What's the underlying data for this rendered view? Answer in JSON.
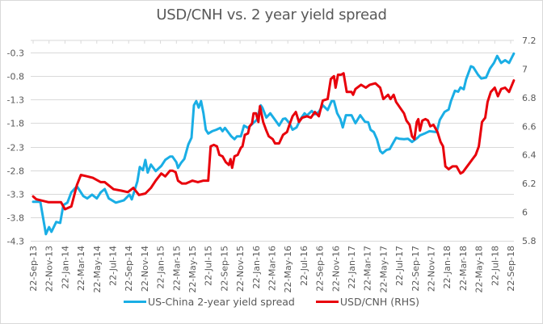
{
  "chart_data": {
    "type": "line",
    "title": "USD/CNH vs. 2 year yield spread",
    "xlabel": "",
    "ylabel": "",
    "x_unit": "months since 22-Sep-13",
    "x_tick_labels": [
      "22-Sep-13",
      "22-Nov-13",
      "22-Jan-14",
      "22-Mar-14",
      "22-May-14",
      "22-Jul-14",
      "22-Sep-14",
      "22-Nov-14",
      "22-Jan-15",
      "22-Mar-15",
      "22-May-15",
      "22-Jul-15",
      "22-Sep-15",
      "22-Nov-15",
      "22-Jan-16",
      "22-Mar-16",
      "22-May-16",
      "22-Jul-16",
      "22-Sep-16",
      "22-Nov-16",
      "22-Jan-17",
      "22-Mar-17",
      "22-May-17",
      "22-Jul-17",
      "22-Sep-17",
      "22-Nov-17",
      "22-Jan-18",
      "22-Mar-18",
      "22-May-18",
      "22-Jul-18",
      "22-Sep-18"
    ],
    "xlim": [
      0,
      60
    ],
    "y_left": {
      "ticks": [
        "-0.3",
        "-0.8",
        "-1.3",
        "-1.8",
        "-2.3",
        "-2.8",
        "-3.3",
        "-3.8",
        "-4.3"
      ],
      "ylim": [
        -4.3,
        -0.04
      ]
    },
    "y_right": {
      "ticks": [
        "7.2",
        "7",
        "6.8",
        "6.6",
        "6.4",
        "6.2",
        "6",
        "5.8"
      ],
      "ylim": [
        5.8,
        7.2
      ]
    },
    "grid": true,
    "legend_position": "bottom",
    "series": [
      {
        "name": "US-China 2-year yield spread",
        "axis": "left",
        "color": "#1aaee5",
        "x": [
          0,
          0.9,
          1.6,
          2.0,
          2.3,
          2.9,
          3.4,
          3.8,
          4.3,
          4.8,
          5.5,
          6.3,
          6.8,
          7.4,
          8.0,
          8.5,
          9.0,
          9.5,
          10.4,
          11.4,
          12.1,
          12.4,
          13.1,
          13.4,
          13.8,
          14.1,
          14.4,
          14.8,
          15.4,
          16.1,
          16.6,
          17.2,
          17.5,
          18.0,
          18.2,
          18.6,
          19.0,
          19.5,
          19.9,
          20.2,
          20.5,
          20.8,
          21.1,
          21.4,
          21.7,
          22.0,
          22.5,
          23.0,
          23.5,
          23.8,
          24.1,
          24.5,
          24.9,
          25.3,
          25.6,
          26.1,
          26.5,
          27.0,
          27.5,
          28.1,
          28.6,
          28.8,
          29.3,
          29.8,
          30.4,
          30.9,
          31.4,
          31.7,
          32.2,
          32.6,
          33.1,
          33.6,
          34.1,
          34.4,
          35.0,
          35.4,
          35.9,
          36.4,
          37.0,
          37.5,
          37.8,
          38.2,
          38.6,
          38.9,
          39.3,
          40.0,
          40.5,
          41.1,
          41.7,
          42.1,
          42.4,
          42.8,
          43.2,
          43.6,
          43.9,
          44.4,
          44.8,
          45.2,
          45.6,
          46.0,
          46.6,
          47.1,
          47.6,
          47.9,
          48.3,
          48.6,
          49.3,
          49.8,
          50.7,
          51.1,
          51.7,
          52.2,
          52.5,
          53.0,
          53.4,
          53.7,
          54.1,
          54.4,
          54.7,
          55.0,
          55.3,
          55.9,
          56.3,
          56.9,
          57.4,
          57.9,
          58.3,
          58.8,
          59.3,
          59.8,
          60.4
        ],
        "values": [
          -3.47,
          -3.47,
          -4.16,
          -4.01,
          -4.11,
          -3.9,
          -3.92,
          -3.54,
          -3.49,
          -3.27,
          -3.14,
          -3.35,
          -3.4,
          -3.32,
          -3.4,
          -3.27,
          -3.2,
          -3.4,
          -3.49,
          -3.44,
          -3.32,
          -3.42,
          -3.04,
          -2.73,
          -2.8,
          -2.58,
          -2.85,
          -2.68,
          -2.82,
          -2.71,
          -2.58,
          -2.51,
          -2.51,
          -2.63,
          -2.75,
          -2.64,
          -2.56,
          -2.25,
          -2.11,
          -1.42,
          -1.33,
          -1.47,
          -1.33,
          -1.59,
          -1.94,
          -2.02,
          -1.97,
          -1.94,
          -1.9,
          -1.97,
          -1.9,
          -1.99,
          -2.08,
          -2.14,
          -2.08,
          -2.08,
          -1.85,
          -1.9,
          -1.82,
          -1.73,
          -1.42,
          -1.47,
          -1.68,
          -1.59,
          -1.73,
          -1.85,
          -1.71,
          -1.7,
          -1.8,
          -1.94,
          -1.89,
          -1.71,
          -1.59,
          -1.64,
          -1.54,
          -1.61,
          -1.56,
          -1.42,
          -1.52,
          -1.33,
          -1.33,
          -1.59,
          -1.71,
          -1.89,
          -1.63,
          -1.63,
          -1.8,
          -1.63,
          -1.77,
          -1.78,
          -1.94,
          -1.99,
          -2.14,
          -2.39,
          -2.44,
          -2.37,
          -2.35,
          -2.23,
          -2.11,
          -2.13,
          -2.14,
          -2.13,
          -2.2,
          -2.16,
          -2.11,
          -2.06,
          -2.01,
          -1.97,
          -1.99,
          -1.73,
          -1.56,
          -1.51,
          -1.33,
          -1.11,
          -1.13,
          -1.04,
          -1.08,
          -0.87,
          -0.73,
          -0.59,
          -0.61,
          -0.77,
          -0.85,
          -0.83,
          -0.64,
          -0.52,
          -0.37,
          -0.52,
          -0.46,
          -0.52,
          -0.32
        ]
      },
      {
        "name": "USD/CNH (RHS)",
        "axis": "right",
        "color": "#e8000b",
        "x": [
          0,
          0.4,
          1.9,
          3.5,
          4.0,
          4.8,
          5.5,
          6.0,
          6.8,
          7.5,
          8.5,
          9.0,
          10.1,
          11.1,
          11.9,
          12.6,
          13.3,
          14.1,
          14.8,
          15.4,
          16.1,
          16.6,
          17.2,
          17.5,
          17.9,
          18.2,
          18.7,
          19.2,
          20.0,
          20.7,
          21.4,
          22.0,
          22.3,
          22.7,
          23.1,
          23.4,
          23.8,
          24.2,
          24.6,
          24.8,
          25.0,
          25.3,
          25.7,
          26.1,
          26.3,
          26.6,
          27.0,
          27.2,
          27.5,
          27.7,
          28.0,
          28.3,
          28.5,
          28.9,
          29.3,
          29.6,
          30.1,
          30.4,
          30.9,
          31.4,
          31.9,
          32.2,
          32.6,
          33.0,
          33.4,
          33.8,
          34.4,
          34.9,
          35.4,
          35.9,
          36.4,
          37.0,
          37.4,
          37.8,
          38.0,
          38.3,
          38.7,
          39.0,
          39.4,
          40.0,
          40.2,
          40.5,
          41.2,
          41.8,
          42.3,
          43.0,
          43.6,
          44.0,
          44.6,
          44.9,
          45.3,
          45.6,
          46.1,
          46.6,
          46.9,
          47.3,
          47.6,
          47.9,
          48.2,
          48.4,
          48.6,
          48.9,
          49.3,
          49.6,
          49.9,
          50.3,
          50.8,
          51.2,
          51.5,
          51.8,
          52.2,
          52.7,
          53.2,
          53.7,
          54.0,
          54.4,
          54.8,
          55.2,
          55.6,
          56.0,
          56.4,
          56.8,
          57.1,
          57.5,
          58.0,
          58.4,
          58.8,
          59.3,
          59.8,
          60.4
        ],
        "values": [
          6.11,
          6.09,
          6.07,
          6.07,
          6.02,
          6.04,
          6.19,
          6.26,
          6.25,
          6.24,
          6.21,
          6.21,
          6.16,
          6.15,
          6.14,
          6.17,
          6.12,
          6.13,
          6.17,
          6.22,
          6.27,
          6.25,
          6.29,
          6.29,
          6.28,
          6.22,
          6.2,
          6.2,
          6.22,
          6.21,
          6.22,
          6.22,
          6.46,
          6.47,
          6.46,
          6.4,
          6.39,
          6.35,
          6.33,
          6.37,
          6.31,
          6.39,
          6.4,
          6.45,
          6.46,
          6.54,
          6.55,
          6.6,
          6.62,
          6.69,
          6.69,
          6.63,
          6.74,
          6.63,
          6.57,
          6.53,
          6.51,
          6.48,
          6.48,
          6.54,
          6.56,
          6.61,
          6.67,
          6.7,
          6.63,
          6.66,
          6.67,
          6.66,
          6.7,
          6.67,
          6.78,
          6.79,
          6.93,
          6.95,
          6.87,
          6.96,
          6.96,
          6.97,
          6.84,
          6.84,
          6.82,
          6.86,
          6.89,
          6.87,
          6.89,
          6.9,
          6.87,
          6.79,
          6.82,
          6.79,
          6.82,
          6.77,
          6.73,
          6.69,
          6.64,
          6.61,
          6.53,
          6.51,
          6.63,
          6.65,
          6.57,
          6.64,
          6.65,
          6.64,
          6.6,
          6.61,
          6.56,
          6.49,
          6.46,
          6.32,
          6.3,
          6.32,
          6.32,
          6.27,
          6.28,
          6.31,
          6.34,
          6.37,
          6.4,
          6.46,
          6.63,
          6.66,
          6.77,
          6.84,
          6.87,
          6.81,
          6.86,
          6.87,
          6.84,
          6.92
        ]
      }
    ]
  }
}
